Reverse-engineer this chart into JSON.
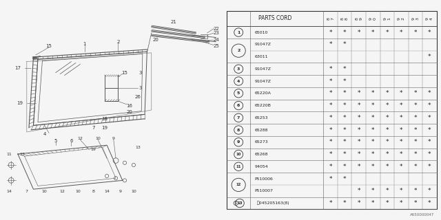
{
  "footer": "A650000047",
  "col_headers": [
    "8\n7",
    "8\n8",
    "8\n9",
    "9\n0",
    "9\n1",
    "9\n2",
    "9\n3",
    "9\n4"
  ],
  "rows": [
    {
      "num": "1",
      "circle": true,
      "part": "65010",
      "marks": [
        1,
        1,
        1,
        1,
        1,
        1,
        1,
        1
      ],
      "sub": false
    },
    {
      "num": "2",
      "circle": true,
      "part": "91047Z",
      "marks": [
        1,
        1,
        0,
        0,
        0,
        0,
        0,
        0
      ],
      "sub": false
    },
    {
      "num": "2",
      "circle": false,
      "part": "63011",
      "marks": [
        0,
        0,
        0,
        0,
        0,
        0,
        0,
        1
      ],
      "sub": true
    },
    {
      "num": "3",
      "circle": true,
      "part": "91047Z",
      "marks": [
        1,
        1,
        0,
        0,
        0,
        0,
        0,
        0
      ],
      "sub": false
    },
    {
      "num": "4",
      "circle": true,
      "part": "91047Z",
      "marks": [
        1,
        1,
        0,
        0,
        0,
        0,
        0,
        0
      ],
      "sub": false
    },
    {
      "num": "5",
      "circle": true,
      "part": "65220A",
      "marks": [
        1,
        1,
        1,
        1,
        1,
        1,
        1,
        1
      ],
      "sub": false
    },
    {
      "num": "6",
      "circle": true,
      "part": "65220B",
      "marks": [
        1,
        1,
        1,
        1,
        1,
        1,
        1,
        1
      ],
      "sub": false
    },
    {
      "num": "7",
      "circle": true,
      "part": "65253",
      "marks": [
        1,
        1,
        1,
        1,
        1,
        1,
        1,
        1
      ],
      "sub": false
    },
    {
      "num": "8",
      "circle": true,
      "part": "65288",
      "marks": [
        1,
        1,
        1,
        1,
        1,
        1,
        1,
        1
      ],
      "sub": false
    },
    {
      "num": "9",
      "circle": true,
      "part": "65273",
      "marks": [
        1,
        1,
        1,
        1,
        1,
        1,
        1,
        1
      ],
      "sub": false
    },
    {
      "num": "10",
      "circle": true,
      "part": "65268",
      "marks": [
        1,
        1,
        1,
        1,
        1,
        1,
        1,
        1
      ],
      "sub": false
    },
    {
      "num": "11",
      "circle": true,
      "part": "94054",
      "marks": [
        1,
        1,
        1,
        1,
        1,
        1,
        1,
        1
      ],
      "sub": false
    },
    {
      "num": "12",
      "circle": true,
      "part": "P510006",
      "marks": [
        1,
        1,
        0,
        0,
        0,
        0,
        0,
        0
      ],
      "sub": false
    },
    {
      "num": "12",
      "circle": false,
      "part": "P510007",
      "marks": [
        0,
        0,
        1,
        1,
        1,
        1,
        1,
        1
      ],
      "sub": true
    },
    {
      "num": "13",
      "circle": true,
      "part": "045205163(8)",
      "marks": [
        1,
        1,
        1,
        1,
        1,
        1,
        1,
        1
      ],
      "sub": false,
      "special_s": true
    }
  ],
  "bg_color": "#f5f5f5",
  "lc": "#555555",
  "tc": "#222222"
}
